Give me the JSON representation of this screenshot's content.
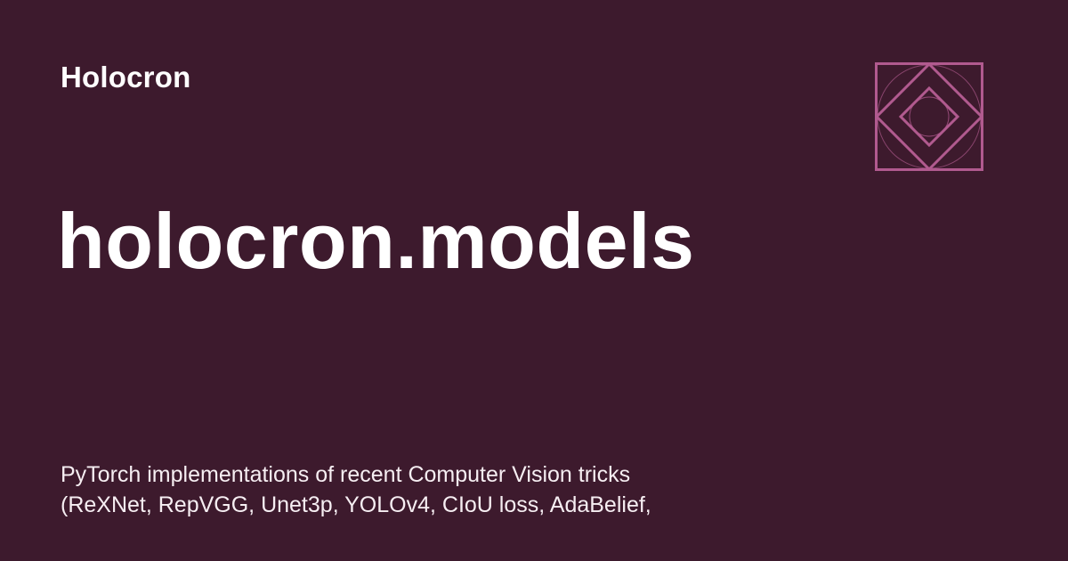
{
  "site": {
    "name": "Holocron"
  },
  "page": {
    "title": "holocron.models"
  },
  "description": {
    "lines": [
      "PyTorch implementations of recent Computer Vision tricks",
      "(ReXNet, RepVGG, Unet3p, YOLOv4, CIoU loss, AdaBelief,"
    ]
  },
  "logo": {
    "icon": "nested-diamond-square-icon"
  },
  "colors": {
    "background": "#3d1a2d",
    "text": "#ffffff",
    "accent": "#b15a8f"
  }
}
